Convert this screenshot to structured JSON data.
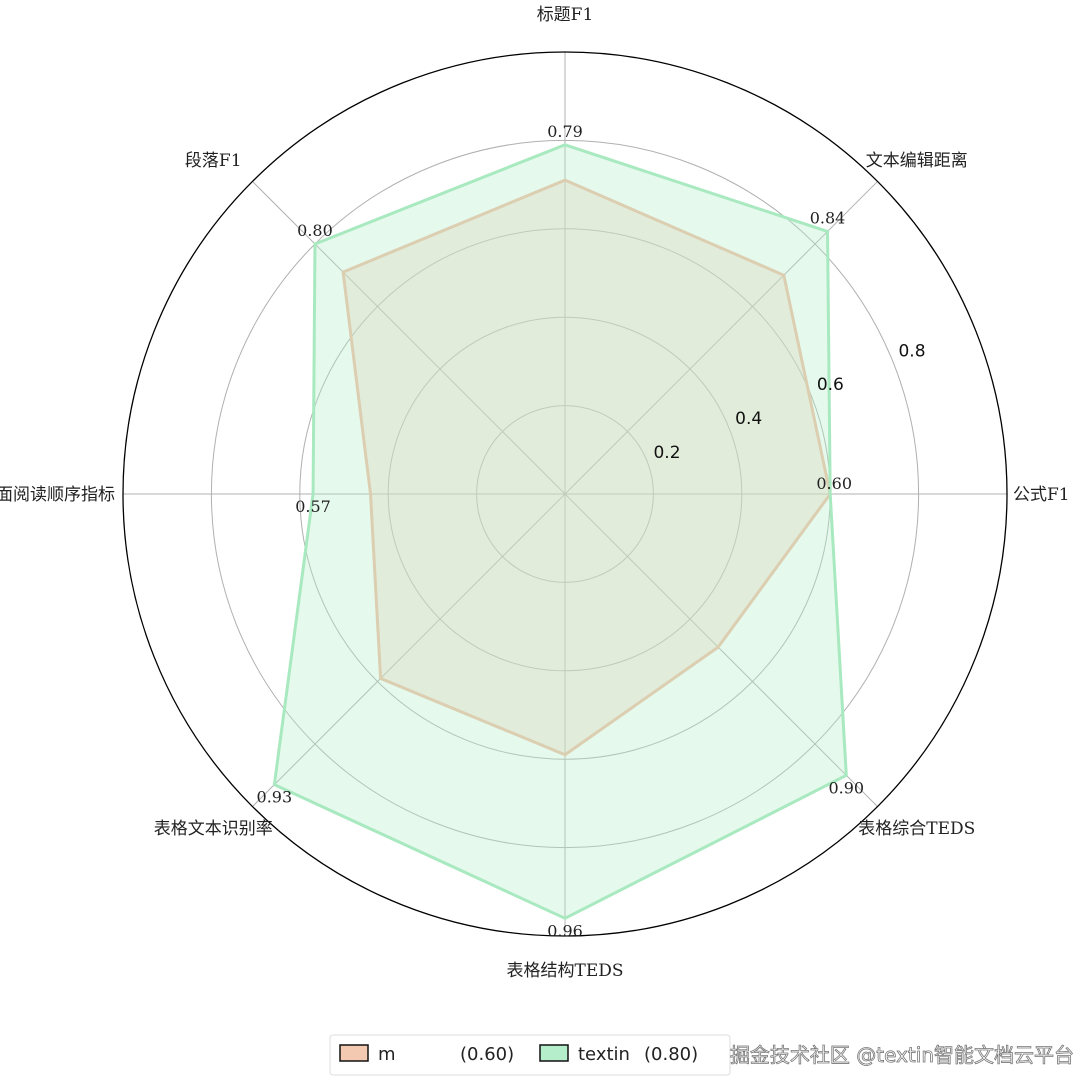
{
  "chart_data": {
    "type": "radar",
    "axes": [
      "标题F1",
      "文本编辑距离",
      "公式F1",
      "表格综合TEDS",
      "表格结构TEDS",
      "表格文本识别率",
      "版面阅读顺序指标",
      "段落F1"
    ],
    "rlim": [
      0,
      1.0
    ],
    "rticks": [
      0.2,
      0.4,
      0.6,
      0.8
    ],
    "rtick_labels": [
      "0.2",
      "0.4",
      "0.6",
      "0.8"
    ],
    "grid": true,
    "legend_position": "bottom",
    "series": [
      {
        "name": "m",
        "legend_label": "m",
        "legend_score": "(0.60)",
        "values": [
          0.71,
          0.7,
          0.6,
          0.49,
          0.59,
          0.59,
          0.44,
          0.71
        ],
        "color": "#f3c9b1",
        "line_color": "#f0bda3"
      },
      {
        "name": "textin",
        "legend_label": "textin",
        "legend_score": "(0.80)",
        "values": [
          0.79,
          0.84,
          0.6,
          0.9,
          0.96,
          0.93,
          0.57,
          0.8
        ],
        "color": "#b5eecb",
        "line_color": "#a8e9c0",
        "value_labels": [
          "0.79",
          "0.84",
          "0.60",
          "0.90",
          "0.96",
          "0.93",
          "0.57",
          "0.80"
        ]
      }
    ]
  },
  "watermark": "掘金技术社区 @textin智能文档云平台"
}
